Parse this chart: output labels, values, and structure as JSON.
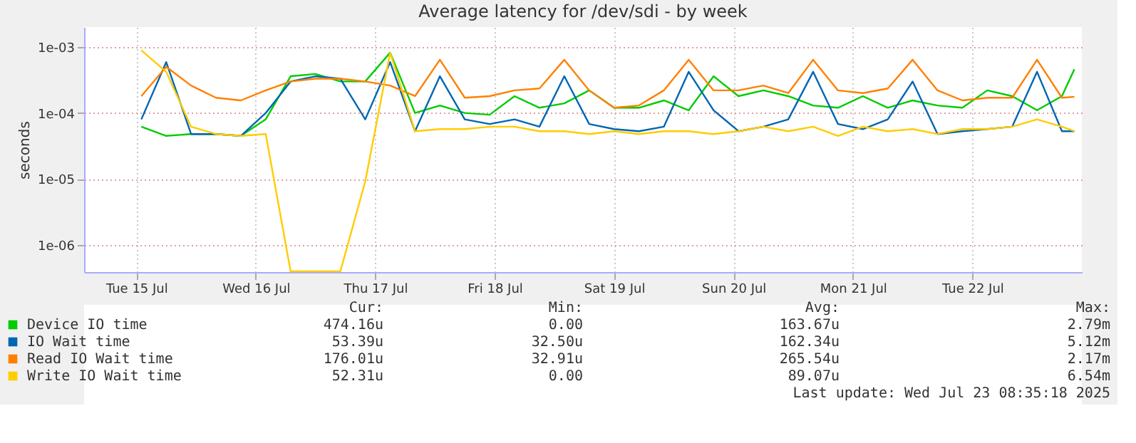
{
  "chart_data": {
    "type": "line",
    "title": "Average latency for /dev/sdi - by week",
    "ylabel": "seconds",
    "log": "y",
    "grid": true,
    "legend": "bottom",
    "marker": "none",
    "line_style": "solid",
    "x": [
      "2025-07-15T13:00",
      "2025-07-15T18:00",
      "2025-07-15T23:00",
      "2025-07-16T04:00",
      "2025-07-16T09:00",
      "2025-07-16T14:00",
      "2025-07-16T19:00",
      "2025-07-17T00:00",
      "2025-07-17T05:00",
      "2025-07-17T10:00",
      "2025-07-17T15:00",
      "2025-07-17T20:00",
      "2025-07-18T01:00",
      "2025-07-18T06:00",
      "2025-07-18T11:00",
      "2025-07-18T16:00",
      "2025-07-18T21:00",
      "2025-07-19T02:00",
      "2025-07-19T07:00",
      "2025-07-19T12:00",
      "2025-07-19T17:00",
      "2025-07-19T22:00",
      "2025-07-20T03:00",
      "2025-07-20T08:00",
      "2025-07-20T13:00",
      "2025-07-20T18:00",
      "2025-07-20T23:00",
      "2025-07-21T04:00",
      "2025-07-21T09:00",
      "2025-07-21T14:00",
      "2025-07-21T19:00",
      "2025-07-22T00:00",
      "2025-07-22T05:00",
      "2025-07-22T10:00",
      "2025-07-22T15:00",
      "2025-07-22T20:00",
      "2025-07-23T01:00",
      "2025-07-23T06:00",
      "2025-07-23T08:30"
    ],
    "series": [
      {
        "name": "Device IO time",
        "color": "#00cc00",
        "values": [
          6.2e-05,
          4.5e-05,
          4.8e-05,
          4.8e-05,
          4.5e-05,
          8e-05,
          0.00036,
          0.00039,
          0.0003,
          0.0003,
          0.00082,
          0.0001,
          0.00013,
          0.0001,
          9.4e-05,
          0.00018,
          0.00012,
          0.00014,
          0.00022,
          0.00012,
          0.00012,
          0.000155,
          0.00011,
          0.00036,
          0.00018,
          0.00022,
          0.00018,
          0.00013,
          0.00012,
          0.00018,
          0.00012,
          0.000155,
          0.00013,
          0.00012,
          0.00022,
          0.00018,
          0.00011,
          0.00018,
          0.00046
        ]
      },
      {
        "name": "IO Wait time",
        "color": "#0066b3",
        "values": [
          8e-05,
          0.00059,
          4.8e-05,
          4.8e-05,
          4.5e-05,
          0.0001,
          0.0003,
          0.00036,
          0.00033,
          8e-05,
          0.00059,
          5.3e-05,
          0.00036,
          8e-05,
          6.8e-05,
          8e-05,
          6.2e-05,
          0.00036,
          6.8e-05,
          5.7e-05,
          5.3e-05,
          6.2e-05,
          0.00042,
          0.00011,
          5.3e-05,
          6.2e-05,
          8e-05,
          0.00042,
          6.8e-05,
          5.7e-05,
          8e-05,
          0.0003,
          4.8e-05,
          5.3e-05,
          5.7e-05,
          6.2e-05,
          0.00042,
          5.3e-05,
          5.3e-05
        ]
      },
      {
        "name": "Read IO Wait time",
        "color": "#ff8000",
        "values": [
          0.00018,
          0.0005,
          0.00026,
          0.00017,
          0.000155,
          0.00022,
          0.0003,
          0.00033,
          0.00033,
          0.0003,
          0.00026,
          0.00018,
          0.00064,
          0.00017,
          0.00018,
          0.00022,
          0.000235,
          0.00064,
          0.00022,
          0.00012,
          0.00013,
          0.00022,
          0.00064,
          0.00022,
          0.00022,
          0.00026,
          0.0002,
          0.00064,
          0.00022,
          0.0002,
          0.000235,
          0.00064,
          0.00022,
          0.000155,
          0.00017,
          0.00017,
          0.00064,
          0.00017,
          0.000176
        ]
      },
      {
        "name": "Write IO Wait time",
        "color": "#ffcc00",
        "values": [
          0.00089,
          0.00042,
          6.2e-05,
          4.8e-05,
          4.5e-05,
          4.8e-05,
          4e-07,
          4e-07,
          4e-07,
          9.2e-06,
          0.00082,
          5.3e-05,
          5.7e-05,
          5.7e-05,
          6.2e-05,
          6.2e-05,
          5.3e-05,
          5.3e-05,
          4.8e-05,
          5.3e-05,
          4.8e-05,
          5.3e-05,
          5.3e-05,
          4.8e-05,
          5.3e-05,
          6.2e-05,
          5.3e-05,
          6.2e-05,
          4.5e-05,
          6.2e-05,
          5.3e-05,
          5.7e-05,
          4.8e-05,
          5.7e-05,
          5.7e-05,
          6.2e-05,
          8e-05,
          6.2e-05,
          5.3e-05
        ]
      }
    ],
    "xlim": [
      "2025-07-15T01:30",
      "2025-07-23T10:00"
    ],
    "xticks": [
      {
        "value": "2025-07-15T12:00",
        "label": "Tue 15 Jul"
      },
      {
        "value": "2025-07-16T12:00",
        "label": "Wed 16 Jul"
      },
      {
        "value": "2025-07-17T12:00",
        "label": "Thu 17 Jul"
      },
      {
        "value": "2025-07-18T12:00",
        "label": "Fri 18 Jul"
      },
      {
        "value": "2025-07-19T12:00",
        "label": "Sat 19 Jul"
      },
      {
        "value": "2025-07-20T12:00",
        "label": "Sun 20 Jul"
      },
      {
        "value": "2025-07-21T12:00",
        "label": "Mon 21 Jul"
      },
      {
        "value": "2025-07-22T12:00",
        "label": "Tue 22 Jul"
      }
    ],
    "ylim": [
      3.9e-07,
      0.002
    ],
    "yticks": [
      {
        "value": 1e-06,
        "label": "1e-06"
      },
      {
        "value": 1e-05,
        "label": "1e-05"
      },
      {
        "value": 0.0001,
        "label": "1e-04"
      },
      {
        "value": 0.001,
        "label": "1e-03"
      }
    ],
    "annotations": [
      "Cur:",
      "Min:",
      "Avg:",
      "Max:",
      "474.16u",
      "0.00",
      "163.67u",
      "2.79m",
      "53.39u",
      "32.50u",
      "162.34u",
      "5.12m",
      "176.01u",
      "32.91u",
      "265.54u",
      "2.17m",
      "52.31u",
      "0.00",
      "89.07u",
      "6.54m",
      "Last update: Wed Jul 23 08:35:18 2025"
    ]
  }
}
